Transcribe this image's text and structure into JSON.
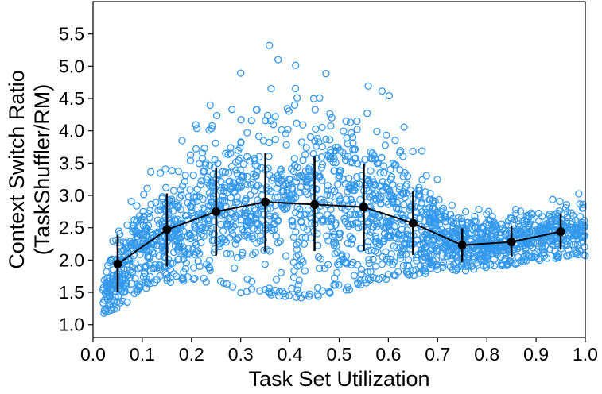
{
  "chart_data": {
    "type": "scatter",
    "title": "",
    "xlabel": "Task Set Utilization",
    "ylabel_lines": [
      "Context Switch Ratio",
      "(TaskShuffler/RM)"
    ],
    "xlim": [
      0.0,
      1.0
    ],
    "ylim": [
      0.8,
      6.0
    ],
    "x_ticks": [
      "0.0",
      "0.1",
      "0.2",
      "0.3",
      "0.4",
      "0.5",
      "0.6",
      "0.7",
      "0.8",
      "0.9",
      "1.0"
    ],
    "y_ticks": [
      "1.0",
      "1.5",
      "2.0",
      "2.5",
      "3.0",
      "3.5",
      "4.0",
      "4.5",
      "5.0",
      "5.5"
    ],
    "grid": false,
    "colors": {
      "scatter": "#3399ee",
      "mean_line": "#000000"
    },
    "scatter_cloud": [
      {
        "x": 0.02,
        "mean": 1.4,
        "sd": 0.15
      },
      {
        "x": 0.05,
        "mean": 1.75,
        "sd": 0.28
      },
      {
        "x": 0.1,
        "mean": 2.25,
        "sd": 0.38
      },
      {
        "x": 0.15,
        "mean": 2.45,
        "sd": 0.42
      },
      {
        "x": 0.2,
        "mean": 2.62,
        "sd": 0.5
      },
      {
        "x": 0.25,
        "mean": 2.75,
        "sd": 0.6
      },
      {
        "x": 0.3,
        "mean": 2.82,
        "sd": 0.7
      },
      {
        "x": 0.35,
        "mean": 2.9,
        "sd": 0.75
      },
      {
        "x": 0.4,
        "mean": 2.9,
        "sd": 0.8
      },
      {
        "x": 0.45,
        "mean": 2.85,
        "sd": 0.75
      },
      {
        "x": 0.5,
        "mean": 2.84,
        "sd": 0.72
      },
      {
        "x": 0.55,
        "mean": 2.8,
        "sd": 0.62
      },
      {
        "x": 0.6,
        "mean": 2.7,
        "sd": 0.52
      },
      {
        "x": 0.65,
        "mean": 2.55,
        "sd": 0.42
      },
      {
        "x": 0.7,
        "mean": 2.38,
        "sd": 0.3
      },
      {
        "x": 0.75,
        "mean": 2.24,
        "sd": 0.22
      },
      {
        "x": 0.8,
        "mean": 2.25,
        "sd": 0.2
      },
      {
        "x": 0.85,
        "mean": 2.3,
        "sd": 0.2
      },
      {
        "x": 0.9,
        "mean": 2.37,
        "sd": 0.2
      },
      {
        "x": 0.95,
        "mean": 2.45,
        "sd": 0.22
      },
      {
        "x": 1.0,
        "mean": 2.5,
        "sd": 0.25
      }
    ],
    "mean_series": {
      "x": [
        0.05,
        0.15,
        0.25,
        0.35,
        0.45,
        0.55,
        0.65,
        0.75,
        0.85,
        0.95
      ],
      "y": [
        1.94,
        2.47,
        2.75,
        2.9,
        2.86,
        2.82,
        2.57,
        2.23,
        2.28,
        2.44
      ],
      "err_low": [
        1.5,
        1.9,
        2.07,
        2.13,
        2.14,
        2.14,
        2.08,
        1.97,
        2.04,
        2.16
      ],
      "err_high": [
        2.39,
        3.03,
        3.43,
        3.66,
        3.6,
        3.49,
        3.06,
        2.49,
        2.52,
        2.72
      ]
    }
  }
}
